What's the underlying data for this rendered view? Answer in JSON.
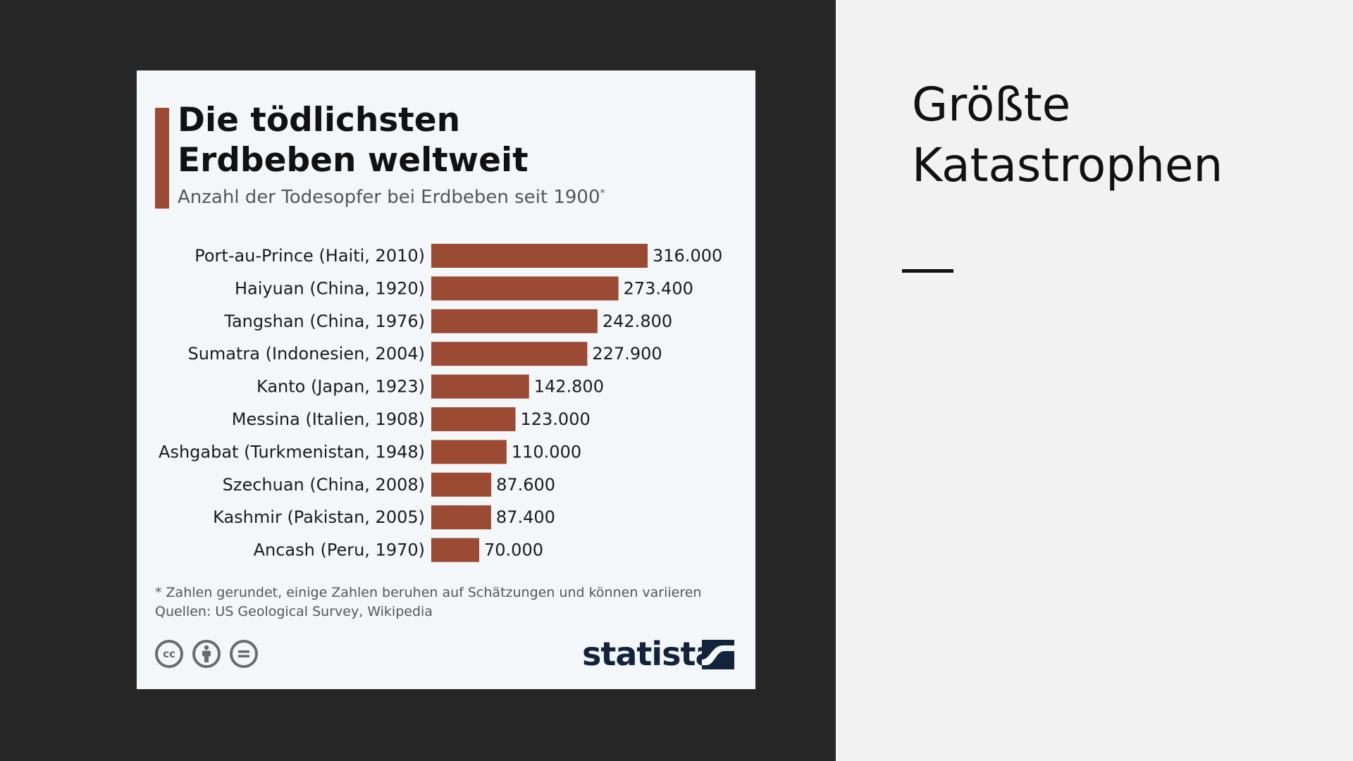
{
  "slide": {
    "title_lines": [
      "Größte",
      "Katastrophen"
    ]
  },
  "card": {
    "title_lines": [
      "Die tödlichsten",
      "Erdbeben weltweit"
    ],
    "subtitle": "Anzahl der Todesopfer bei Erdbeben seit 1900",
    "subtitle_mark": "*",
    "footnote": "* Zahlen gerundet, einige Zahlen beruhen auf Schätzungen und können variieren",
    "sources": "Quellen: US Geological Survey, Wikipedia",
    "brand": "statista",
    "cc_icons": [
      "cc-icon",
      "attribution-icon",
      "no-derivatives-icon"
    ],
    "cc_label": "cc"
  },
  "colors": {
    "bar": "#9b4a34",
    "left_background": "#262626",
    "card_background": "#f4f7fa",
    "brand": "#14233c"
  },
  "chart_data": {
    "type": "bar",
    "orientation": "horizontal",
    "title": "Die tödlichsten Erdbeben weltweit",
    "subtitle": "Anzahl der Todesopfer bei Erdbeben seit 1900*",
    "categories": [
      "Port-au-Prince (Haiti, 2010)",
      "Haiyuan (China, 1920)",
      "Tangshan (China, 1976)",
      "Sumatra (Indonesien, 2004)",
      "Kanto (Japan, 1923)",
      "Messina (Italien, 1908)",
      "Ashgabat (Turkmenistan, 1948)",
      "Szechuan (China, 2008)",
      "Kashmir (Pakistan, 2005)",
      "Ancash (Peru, 1970)"
    ],
    "values": [
      316000,
      273400,
      242800,
      227900,
      142800,
      123000,
      110000,
      87600,
      87400,
      70000
    ],
    "value_labels": [
      "316.000",
      "273.400",
      "242.800",
      "227.900",
      "142.800",
      "123.000",
      "110.000",
      "87.600",
      "87.400",
      "70.000"
    ],
    "xlim": [
      0,
      316000
    ],
    "grid": false,
    "legend": "none"
  }
}
